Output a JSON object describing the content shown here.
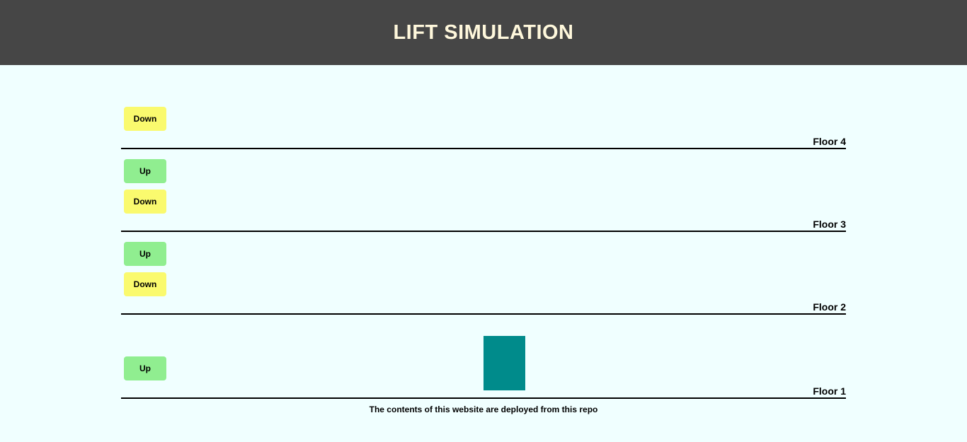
{
  "header": {
    "title": "LIFT SIMULATION"
  },
  "floors": [
    {
      "label": "Floor 4",
      "down_label": "Down"
    },
    {
      "label": "Floor 3",
      "up_label": "Up",
      "down_label": "Down"
    },
    {
      "label": "Floor 2",
      "up_label": "Up",
      "down_label": "Down"
    },
    {
      "label": "Floor 1",
      "up_label": "Up"
    }
  ],
  "lift": {
    "current_floor": 1,
    "color": "#008b8b"
  },
  "colors": {
    "header_bg": "#464646",
    "title": "#fff8dc",
    "page_bg": "#f0ffff",
    "up_button": "#90ee90",
    "down_button": "#fafa6e"
  },
  "footer": {
    "text": "The contents of this website are deployed from this repo"
  }
}
